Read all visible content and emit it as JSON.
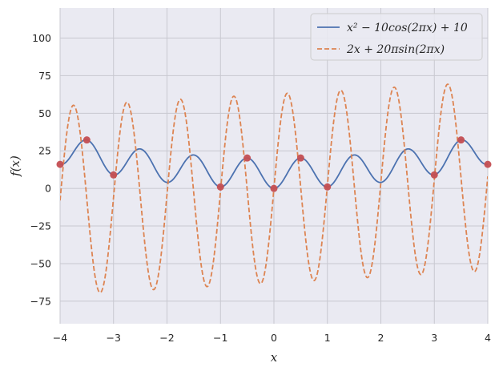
{
  "chart_data": {
    "type": "line",
    "xlabel": "x",
    "ylabel": "f(x)",
    "xlim": [
      -4,
      4
    ],
    "ylim": [
      -90,
      120
    ],
    "grid": true,
    "legend_position": "top-right",
    "xticks": [
      -4,
      -3,
      -2,
      -1,
      0,
      1,
      2,
      3,
      4
    ],
    "xtick_labels": [
      "−4",
      "−3",
      "−2",
      "−1",
      "0",
      "1",
      "2",
      "3",
      "4"
    ],
    "yticks": [
      -75,
      -50,
      -25,
      0,
      25,
      50,
      75,
      100
    ],
    "ytick_labels": [
      "−75",
      "−50",
      "−25",
      "0",
      "25",
      "50",
      "75",
      "100"
    ],
    "series": [
      {
        "name": "x² − 10cos(2πx) + 10",
        "style": "solid",
        "color": "#4c72b0",
        "x_range": [
          -4,
          4
        ],
        "samples": 801,
        "key_points": [
          {
            "x": -4,
            "y": 16
          },
          {
            "x": -3.5,
            "y": 32.25
          },
          {
            "x": -3,
            "y": 9
          },
          {
            "x": -2.5,
            "y": 26.25
          },
          {
            "x": -2,
            "y": 4
          },
          {
            "x": -1.5,
            "y": 22.25
          },
          {
            "x": -1,
            "y": 1
          },
          {
            "x": -0.5,
            "y": 20.25
          },
          {
            "x": 0,
            "y": 0
          },
          {
            "x": 0.5,
            "y": 20.25
          },
          {
            "x": 1,
            "y": 1
          },
          {
            "x": 1.5,
            "y": 22.25
          },
          {
            "x": 2,
            "y": 4
          },
          {
            "x": 2.5,
            "y": 26.25
          },
          {
            "x": 3,
            "y": 9
          },
          {
            "x": 3.5,
            "y": 32.25
          },
          {
            "x": 4,
            "y": 16
          }
        ]
      },
      {
        "name": "2x + 20πsin(2πx)",
        "style": "dashed",
        "color": "#dd8452",
        "x_range": [
          -4,
          4
        ],
        "samples": 801,
        "key_points": [
          {
            "x": -3.75,
            "y": 55.3
          },
          {
            "x": -3.25,
            "y": -69.3
          },
          {
            "x": -2.75,
            "y": 57.3
          },
          {
            "x": -2.25,
            "y": -67.3
          },
          {
            "x": -1.75,
            "y": 59.3
          },
          {
            "x": -1.25,
            "y": -65.3
          },
          {
            "x": -0.75,
            "y": 61.3
          },
          {
            "x": -0.25,
            "y": -63.3
          },
          {
            "x": 0.25,
            "y": 63.3
          },
          {
            "x": 0.75,
            "y": -61.3
          },
          {
            "x": 1.25,
            "y": 65.3
          },
          {
            "x": 1.75,
            "y": -59.3
          },
          {
            "x": 2.25,
            "y": 67.3
          },
          {
            "x": 2.75,
            "y": -57.3
          },
          {
            "x": 3.25,
            "y": 69.3
          },
          {
            "x": 3.75,
            "y": -55.3
          }
        ]
      }
    ],
    "markers": {
      "color": "#c44e52",
      "points": [
        {
          "x": -4,
          "y": 16
        },
        {
          "x": -3.5,
          "y": 32.25
        },
        {
          "x": -3,
          "y": 9
        },
        {
          "x": -1,
          "y": 1
        },
        {
          "x": -0.5,
          "y": 20.25
        },
        {
          "x": 0,
          "y": 0
        },
        {
          "x": 0.5,
          "y": 20.25
        },
        {
          "x": 1,
          "y": 1
        },
        {
          "x": 3,
          "y": 9
        },
        {
          "x": 3.5,
          "y": 32.25
        },
        {
          "x": 4,
          "y": 16
        }
      ]
    }
  }
}
